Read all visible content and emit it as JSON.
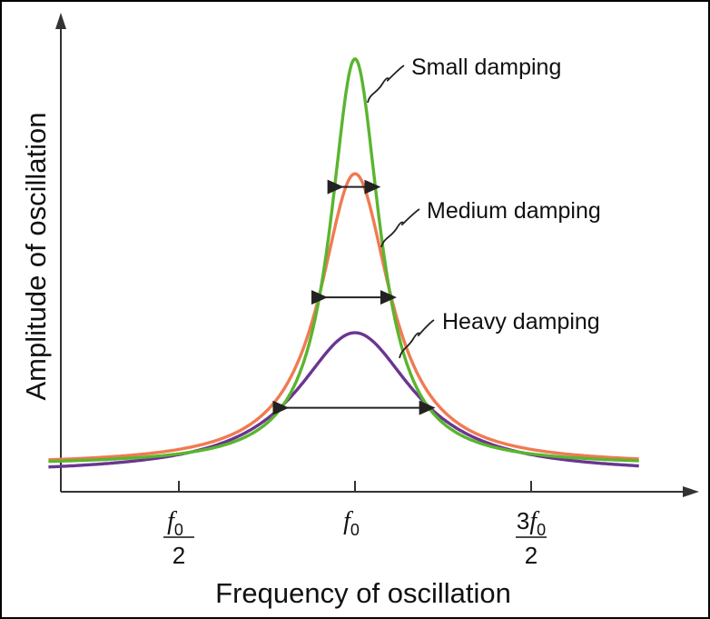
{
  "chart_data": {
    "type": "line",
    "xlabel": "Frequency of oscillation",
    "ylabel": "Amplitude of oscillation",
    "x_ticks": [
      {
        "x": 0.5,
        "numerator": "f",
        "sub": "0",
        "denominator": "2",
        "prefix": ""
      },
      {
        "x": 1.0,
        "numerator": "f",
        "sub": "0",
        "denominator": "",
        "prefix": ""
      },
      {
        "x": 1.5,
        "numerator": "f",
        "sub": "0",
        "denominator": "2",
        "prefix": "3"
      }
    ],
    "xlim": [
      0.0,
      1.8
    ],
    "ylim": [
      0.0,
      1.0
    ],
    "series": [
      {
        "name": "Small damping",
        "color": "#5ab52e",
        "peak": 0.98,
        "width": 0.085,
        "baseline": 0.06
      },
      {
        "name": "Medium damping",
        "color": "#f07a52",
        "peak": 0.72,
        "width": 0.12,
        "baseline": 0.06
      },
      {
        "name": "Heavy damping",
        "color": "#6a3590",
        "peak": 0.36,
        "width": 0.2,
        "baseline": 0.04
      }
    ],
    "annotations": [
      {
        "text": "Small damping",
        "series": 0
      },
      {
        "text": "Medium damping",
        "series": 1
      },
      {
        "text": "Heavy damping",
        "series": 2
      }
    ],
    "grid": false,
    "legend": "none"
  }
}
